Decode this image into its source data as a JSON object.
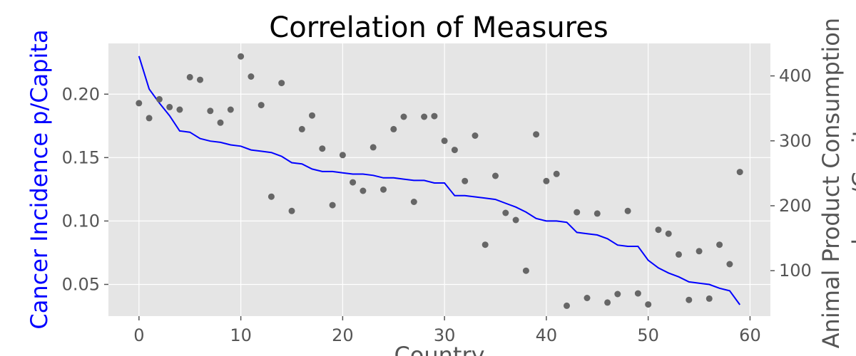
{
  "chart_data": {
    "type": "line+scatter",
    "title": "Correlation of Measures",
    "xlabel": "Country",
    "ylabel_left": "Cancer Incidence p/Capita",
    "ylabel_right": "Animal Product Consumption kg p/Capita",
    "xlim": [
      -3,
      62
    ],
    "ylim_left": [
      0.025,
      0.24
    ],
    "ylim_right": [
      30,
      450
    ],
    "xticks": [
      "0",
      "10",
      "20",
      "30",
      "40",
      "50",
      "60"
    ],
    "yticks_left": [
      "0.05",
      "0.10",
      "0.15",
      "0.20"
    ],
    "yticks_right": [
      "100",
      "200",
      "300",
      "400"
    ],
    "grid": true,
    "colors": {
      "plot_bg": "#e5e5e5",
      "line": "#0000ff",
      "scatter": "#666666",
      "left_label": "#0000ff",
      "right_label": "#555555"
    },
    "series": [
      {
        "axis": "left",
        "kind": "line",
        "x": [
          0,
          1,
          2,
          3,
          4,
          5,
          6,
          7,
          8,
          9,
          10,
          11,
          12,
          13,
          14,
          15,
          16,
          17,
          18,
          19,
          20,
          21,
          22,
          23,
          24,
          25,
          26,
          27,
          28,
          29,
          30,
          31,
          32,
          33,
          34,
          35,
          36,
          37,
          38,
          39,
          40,
          41,
          42,
          43,
          44,
          45,
          46,
          47,
          48,
          49,
          50,
          51,
          52,
          53,
          54,
          55,
          56,
          57,
          58,
          59
        ],
        "values": [
          0.23,
          0.204,
          0.193,
          0.183,
          0.171,
          0.17,
          0.165,
          0.163,
          0.162,
          0.16,
          0.159,
          0.156,
          0.155,
          0.154,
          0.151,
          0.146,
          0.145,
          0.141,
          0.139,
          0.139,
          0.138,
          0.137,
          0.137,
          0.136,
          0.134,
          0.134,
          0.133,
          0.132,
          0.132,
          0.13,
          0.13,
          0.12,
          0.12,
          0.119,
          0.118,
          0.117,
          0.114,
          0.111,
          0.107,
          0.102,
          0.1,
          0.1,
          0.099,
          0.091,
          0.09,
          0.089,
          0.086,
          0.081,
          0.08,
          0.08,
          0.069,
          0.063,
          0.059,
          0.056,
          0.052,
          0.051,
          0.05,
          0.047,
          0.045,
          0.034
        ]
      },
      {
        "axis": "right",
        "kind": "scatter",
        "x": [
          0,
          1,
          2,
          3,
          4,
          5,
          6,
          7,
          8,
          9,
          10,
          11,
          12,
          13,
          14,
          15,
          16,
          17,
          18,
          19,
          20,
          21,
          22,
          23,
          24,
          25,
          26,
          27,
          28,
          29,
          30,
          31,
          32,
          33,
          34,
          35,
          36,
          37,
          38,
          39,
          40,
          41,
          42,
          43,
          44,
          45,
          46,
          47,
          48,
          49,
          50,
          51,
          52,
          53,
          54,
          55,
          56,
          57,
          58,
          59
        ],
        "values": [
          358,
          335,
          364,
          352,
          348,
          398,
          394,
          346,
          328,
          348,
          430,
          399,
          355,
          214,
          389,
          192,
          318,
          339,
          288,
          201,
          278,
          236,
          223,
          290,
          225,
          318,
          337,
          206,
          337,
          338,
          300,
          286,
          238,
          308,
          140,
          246,
          189,
          178,
          100,
          310,
          238,
          249,
          46,
          190,
          58,
          188,
          51,
          64,
          192,
          65,
          48,
          163,
          157,
          125,
          55,
          130,
          57,
          140,
          110,
          252
        ]
      }
    ]
  }
}
